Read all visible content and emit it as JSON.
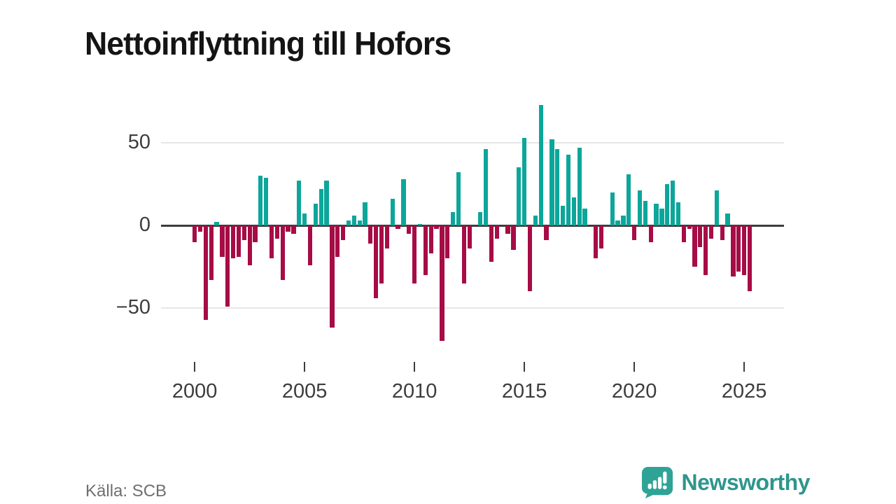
{
  "title": "Nettoinflyttning till Hofors",
  "source": "Källa: SCB",
  "brand": {
    "name": "Newsworthy",
    "icon": "bar-chart-speech-bubble-icon"
  },
  "colors": {
    "positive_bar": "#0ca69a",
    "negative_bar": "#a60c46",
    "zero_line": "#3d3d3d",
    "gridline": "#e7e7e7",
    "axis_text": "#3d3d3d",
    "title_text": "#141414",
    "source_text": "#6f6f6f",
    "brand_teal": "#2e968c",
    "brand_icon_teal": "#2fa396"
  },
  "chart_data": {
    "type": "bar",
    "title": "Nettoinflyttning till Hofors",
    "xlabel": "",
    "ylabel": "",
    "frequency": "quarterly",
    "x_start_year": 2000,
    "bars_per_year": 4,
    "x_tick_labels": [
      "2000",
      "2005",
      "2010",
      "2015",
      "2020",
      "2025"
    ],
    "x_tick_indices": [
      0,
      20,
      40,
      60,
      80,
      100
    ],
    "y_tick_labels": [
      "50",
      "0",
      "−50"
    ],
    "y_tick_values": [
      50,
      0,
      -50
    ],
    "ylim": [
      -77,
      80
    ],
    "grid": "horizontal gridlines at 50 and -50, bold zero baseline",
    "legend": "none",
    "values": [
      -10,
      -4,
      -57,
      -33,
      2,
      -19,
      -49,
      -20,
      -19,
      -9,
      -24,
      -10,
      30,
      29,
      -20,
      -8,
      -33,
      -4,
      -5,
      27,
      7,
      -24,
      13,
      22,
      27,
      -62,
      -19,
      -9,
      3,
      6,
      3,
      14,
      -11,
      -44,
      -35,
      -14,
      16,
      -2,
      28,
      -5,
      -35,
      1,
      -30,
      -17,
      -2,
      -70,
      -20,
      8,
      32,
      -35,
      -14,
      0,
      8,
      46,
      -22,
      -8,
      0,
      -5,
      -15,
      35,
      53,
      -40,
      6,
      73,
      -9,
      52,
      46,
      12,
      43,
      17,
      47,
      10,
      0,
      -20,
      -14,
      0,
      20,
      3,
      6,
      31,
      -9,
      21,
      15,
      -10,
      13,
      10,
      25,
      27,
      14,
      -10,
      -2,
      -25,
      -13,
      -30,
      -8,
      21,
      -9,
      7,
      -31,
      -28,
      -30,
      -40
    ]
  }
}
